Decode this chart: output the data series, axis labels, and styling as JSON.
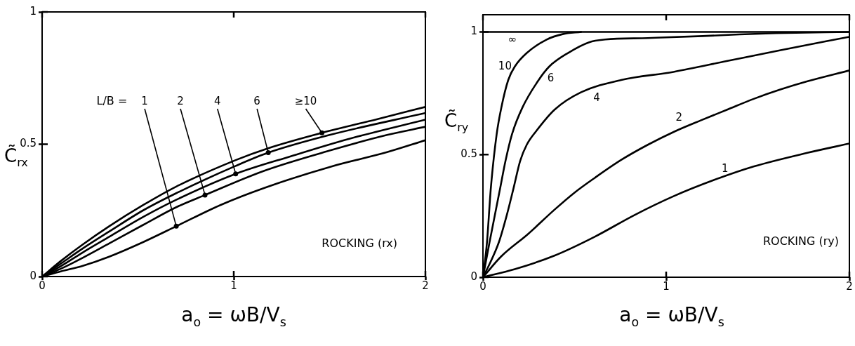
{
  "chart_data": [
    {
      "type": "line",
      "xlabel": "a$_{o}$ = ωB/V$_{s}$",
      "ylabel": "C̃$_{rx}$",
      "annotations": [
        "L/B =",
        "ROCKING (rx)"
      ],
      "xlim": [
        0,
        2
      ],
      "ylim": [
        0,
        1
      ],
      "xticks": [
        0,
        1,
        2
      ],
      "yticks": [
        0,
        0.5,
        1
      ],
      "marker": "none",
      "series": [
        {
          "name": "1",
          "color": "#000000",
          "x": [
            0,
            0.1,
            0.21,
            0.35,
            0.527,
            0.7,
            0.93,
            1.16,
            1.51,
            1.8,
            2
          ],
          "values": [
            0,
            0.02,
            0.04,
            0.075,
            0.13,
            0.19,
            0.27,
            0.335,
            0.416,
            0.47,
            0.515
          ]
        },
        {
          "name": "2",
          "color": "#000000",
          "x": [
            0,
            0.1,
            0.21,
            0.35,
            0.527,
            0.7,
            0.85,
            1.16,
            1.51,
            1.8,
            2
          ],
          "values": [
            0,
            0.03,
            0.07,
            0.125,
            0.195,
            0.262,
            0.308,
            0.4,
            0.478,
            0.535,
            0.566
          ]
        },
        {
          "name": "4",
          "color": "#000000",
          "x": [
            0,
            0.1,
            0.21,
            0.35,
            0.527,
            0.7,
            1.01,
            1.3,
            1.6,
            2
          ],
          "values": [
            0,
            0.04,
            0.09,
            0.15,
            0.225,
            0.29,
            0.388,
            0.455,
            0.52,
            0.593
          ]
        },
        {
          "name": "6",
          "color": "#000000",
          "x": [
            0,
            0.1,
            0.21,
            0.35,
            0.527,
            0.7,
            1.01,
            1.18,
            1.5,
            2
          ],
          "values": [
            0,
            0.05,
            0.105,
            0.17,
            0.25,
            0.315,
            0.418,
            0.468,
            0.535,
            0.618
          ]
        },
        {
          "name": "≥10",
          "color": "#000000",
          "x": [
            0,
            0.1,
            0.21,
            0.35,
            0.527,
            0.7,
            1.01,
            1.18,
            1.46,
            1.75,
            2
          ],
          "values": [
            0,
            0.06,
            0.12,
            0.19,
            0.27,
            0.34,
            0.44,
            0.485,
            0.543,
            0.595,
            0.641
          ]
        }
      ]
    },
    {
      "type": "line",
      "xlabel": "a$_{o}$ = ωB/V$_{s}$",
      "ylabel": "C̃$_{ry}$",
      "annotations": [
        "ROCKING (ry)"
      ],
      "xlim": [
        0,
        2
      ],
      "ylim": [
        0,
        1.07
      ],
      "xticks": [
        0,
        1,
        2
      ],
      "yticks": [
        0,
        0.5,
        1
      ],
      "marker": "none",
      "series": [
        {
          "name": "1",
          "color": "#000000",
          "x": [
            0,
            0.174,
            0.39,
            0.61,
            0.826,
            1.04,
            1.26,
            1.48,
            1.77,
            2
          ],
          "values": [
            0,
            0.033,
            0.088,
            0.165,
            0.253,
            0.33,
            0.396,
            0.452,
            0.507,
            0.545
          ]
        },
        {
          "name": "2",
          "color": "#000000",
          "x": [
            0,
            0.1,
            0.246,
            0.39,
            0.5,
            0.61,
            0.754,
            0.9,
            1.043,
            1.188,
            1.333,
            1.478,
            1.623,
            1.768,
            2
          ],
          "values": [
            0,
            0.085,
            0.176,
            0.275,
            0.345,
            0.405,
            0.478,
            0.54,
            0.593,
            0.639,
            0.683,
            0.727,
            0.765,
            0.798,
            0.843
          ]
        },
        {
          "name": "4",
          "color": "#000000",
          "x": [
            0,
            0.04,
            0.087,
            0.13,
            0.167,
            0.203,
            0.239,
            0.29,
            0.391,
            0.536,
            0.754,
            1.04,
            1.33,
            1.62,
            2
          ],
          "values": [
            0,
            0.06,
            0.143,
            0.253,
            0.363,
            0.474,
            0.54,
            0.595,
            0.683,
            0.754,
            0.804,
            0.837,
            0.881,
            0.925,
            0.98
          ]
        },
        {
          "name": "6",
          "color": "#000000",
          "x": [
            0,
            0.036,
            0.094,
            0.123,
            0.159,
            0.217,
            0.304,
            0.362,
            0.464,
            0.58,
            0.667,
            0.9,
            1.2,
            1.4,
            1.6,
            2
          ],
          "values": [
            0,
            0.143,
            0.363,
            0.474,
            0.584,
            0.694,
            0.804,
            0.859,
            0.914,
            0.958,
            0.969,
            0.975,
            0.983,
            0.99,
            0.995,
            1
          ]
        },
        {
          "name": "10",
          "color": "#000000",
          "x": [
            0,
            0.022,
            0.043,
            0.075,
            0.101,
            0.138,
            0.174,
            0.239,
            0.348,
            0.435,
            0.536
          ],
          "values": [
            0,
            0.143,
            0.363,
            0.584,
            0.694,
            0.804,
            0.859,
            0.914,
            0.969,
            0.991,
            1
          ]
        },
        {
          "name": "∞",
          "color": "#000000",
          "x": [
            0,
            2
          ],
          "values": [
            1,
            1
          ]
        }
      ]
    }
  ]
}
